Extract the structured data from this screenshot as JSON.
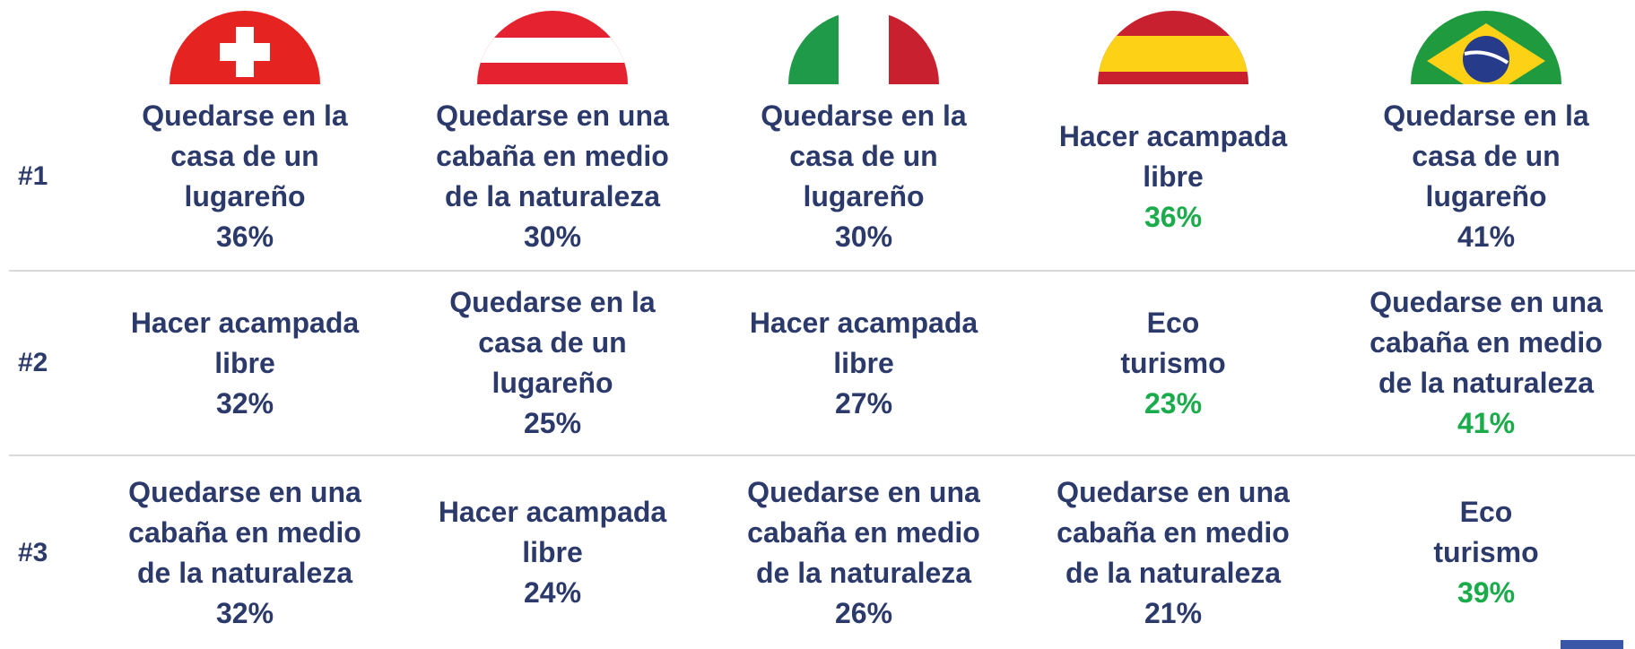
{
  "table": {
    "rows": [
      {
        "label": "#1",
        "cells": [
          {
            "lines": [
              "Quedarse en la",
              "casa de un",
              "lugareño"
            ],
            "pct": "36%",
            "color": "#2b3a6b"
          },
          {
            "lines": [
              "Quedarse en una",
              "cabaña en medio",
              "de la naturaleza"
            ],
            "pct": "30%",
            "color": "#2b3a6b"
          },
          {
            "lines": [
              "Quedarse en la",
              "casa de un",
              "lugareño"
            ],
            "pct": "30%",
            "color": "#2b3a6b"
          },
          {
            "lines": [
              "Hacer acampada",
              "libre"
            ],
            "pct": "36%",
            "color": "#1aab4b"
          },
          {
            "lines": [
              "Quedarse en la",
              "casa de un",
              "lugareño"
            ],
            "pct": "41%",
            "color": "#2b3a6b"
          }
        ]
      },
      {
        "label": "#2",
        "cells": [
          {
            "lines": [
              "Hacer acampada",
              "libre"
            ],
            "pct": "32%",
            "color": "#2b3a6b"
          },
          {
            "lines": [
              "Quedarse en la",
              "casa de un",
              "lugareño"
            ],
            "pct": "25%",
            "color": "#2b3a6b"
          },
          {
            "lines": [
              "Hacer acampada",
              "libre"
            ],
            "pct": "27%",
            "color": "#2b3a6b"
          },
          {
            "lines": [
              "Eco",
              "turismo"
            ],
            "pct": "23%",
            "color": "#1aab4b"
          },
          {
            "lines": [
              "Quedarse en una",
              "cabaña en medio",
              "de la naturaleza"
            ],
            "pct": "41%",
            "color": "#1aab4b"
          }
        ]
      },
      {
        "label": "#3",
        "cells": [
          {
            "lines": [
              "Quedarse en una",
              "cabaña en medio",
              "de la naturaleza"
            ],
            "pct": "32%",
            "color": "#2b3a6b"
          },
          {
            "lines": [
              "Hacer acampada",
              "libre"
            ],
            "pct": "24%",
            "color": "#2b3a6b"
          },
          {
            "lines": [
              "Quedarse en una",
              "cabaña en medio",
              "de la naturaleza"
            ],
            "pct": "26%",
            "color": "#2b3a6b"
          },
          {
            "lines": [
              "Quedarse en una",
              "cabaña en medio",
              "de la naturaleza"
            ],
            "pct": "21%",
            "color": "#2b3a6b"
          },
          {
            "lines": [
              "Eco",
              "turismo"
            ],
            "pct": "39%",
            "color": "#1aab4b"
          }
        ]
      }
    ]
  }
}
